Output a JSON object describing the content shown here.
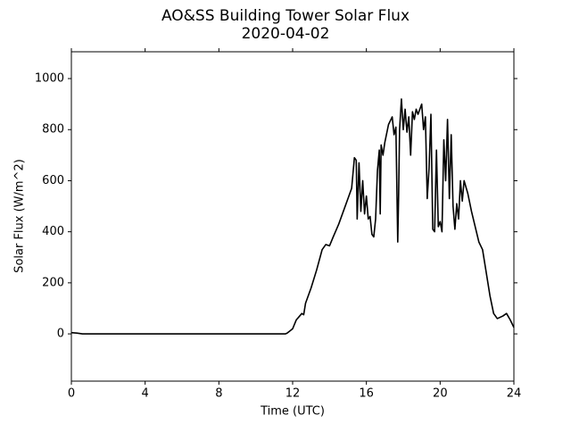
{
  "chart_data": {
    "type": "line",
    "title": "AO&SS Building Tower Solar Flux",
    "subtitle": "2020-04-02",
    "x_label": "Time (UTC)",
    "y_label": "Solar Flux (W/m^2)",
    "x": [
      0,
      0.3,
      0.6,
      2,
      4,
      6,
      8,
      10,
      11.6,
      11.7,
      12.0,
      12.2,
      12.5,
      12.6,
      12.7,
      13.0,
      13.3,
      13.6,
      13.8,
      14.0,
      14.2,
      14.5,
      14.8,
      15.0,
      15.2,
      15.35,
      15.45,
      15.5,
      15.6,
      15.7,
      15.8,
      15.9,
      16.0,
      16.1,
      16.2,
      16.3,
      16.4,
      16.5,
      16.6,
      16.7,
      16.75,
      16.8,
      16.9,
      17.0,
      17.2,
      17.4,
      17.5,
      17.6,
      17.7,
      17.75,
      17.8,
      17.9,
      18.0,
      18.1,
      18.2,
      18.3,
      18.4,
      18.5,
      18.6,
      18.7,
      18.8,
      19.0,
      19.1,
      19.2,
      19.3,
      19.4,
      19.5,
      19.6,
      19.7,
      19.8,
      19.9,
      20.0,
      20.1,
      20.2,
      20.3,
      20.4,
      20.5,
      20.6,
      20.7,
      20.8,
      20.9,
      21.0,
      21.1,
      21.2,
      21.3,
      21.5,
      21.7,
      21.9,
      22.1,
      22.3,
      22.5,
      22.7,
      22.9,
      23.1,
      23.4,
      23.6,
      23.8,
      24.0
    ],
    "series": [
      {
        "name": "Solar Flux",
        "color": "#000000",
        "values": [
          5,
          3,
          0,
          0,
          0,
          0,
          0,
          0,
          0,
          3,
          20,
          55,
          80,
          75,
          120,
          180,
          250,
          330,
          350,
          345,
          380,
          430,
          490,
          530,
          570,
          690,
          680,
          450,
          670,
          480,
          600,
          470,
          540,
          450,
          460,
          390,
          380,
          450,
          640,
          720,
          470,
          740,
          700,
          750,
          820,
          850,
          780,
          810,
          360,
          550,
          800,
          920,
          800,
          880,
          790,
          850,
          700,
          870,
          840,
          880,
          860,
          900,
          800,
          850,
          530,
          650,
          860,
          410,
          400,
          720,
          420,
          440,
          400,
          760,
          600,
          840,
          530,
          780,
          500,
          410,
          510,
          450,
          600,
          520,
          600,
          550,
          480,
          420,
          360,
          330,
          240,
          150,
          80,
          60,
          70,
          80,
          55,
          25
        ]
      }
    ],
    "xlim": [
      0,
      24
    ],
    "xticks": [
      0,
      4,
      8,
      12,
      16,
      20,
      24
    ],
    "ylim": [
      -185,
      1105
    ],
    "yticks": [
      0,
      200,
      400,
      600,
      800,
      1000
    ],
    "grid": false
  }
}
